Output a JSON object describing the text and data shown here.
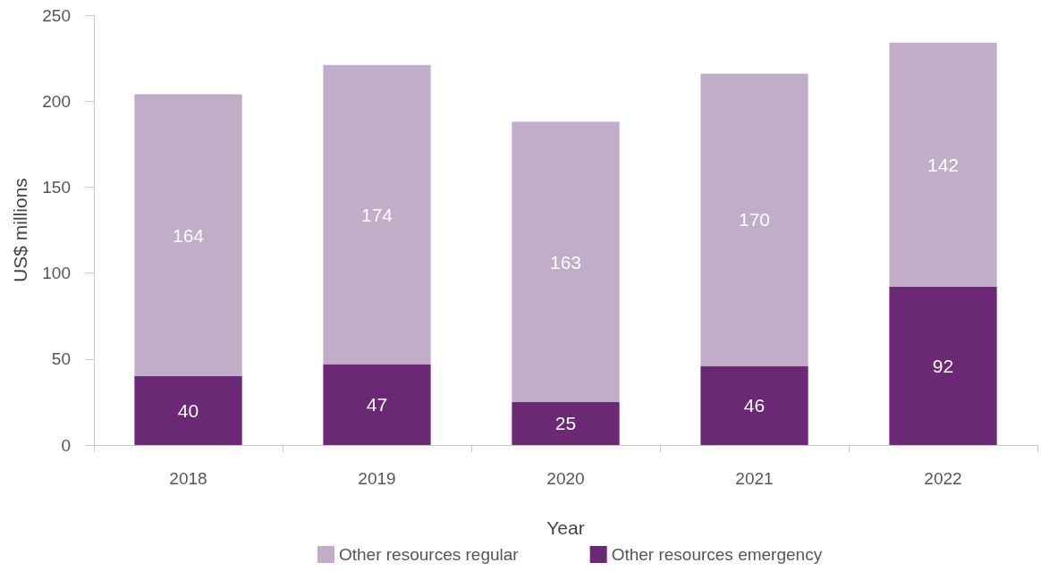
{
  "chart_data": {
    "type": "bar",
    "stacked": true,
    "xlabel": "Year",
    "ylabel": "US$ millions",
    "categories": [
      "2018",
      "2019",
      "2020",
      "2021",
      "2022"
    ],
    "series": [
      {
        "name": "Other resources emergency",
        "color": "#6a2875",
        "values": [
          40,
          47,
          25,
          46,
          92
        ]
      },
      {
        "name": "Other resources regular",
        "color": "#c1adc8",
        "values": [
          164,
          174,
          163,
          170,
          142
        ]
      }
    ],
    "ylim": [
      0,
      250
    ],
    "yticks": [
      0,
      50,
      100,
      150,
      200,
      250
    ],
    "data_labels": true,
    "legend": "bottom",
    "grid": false
  }
}
